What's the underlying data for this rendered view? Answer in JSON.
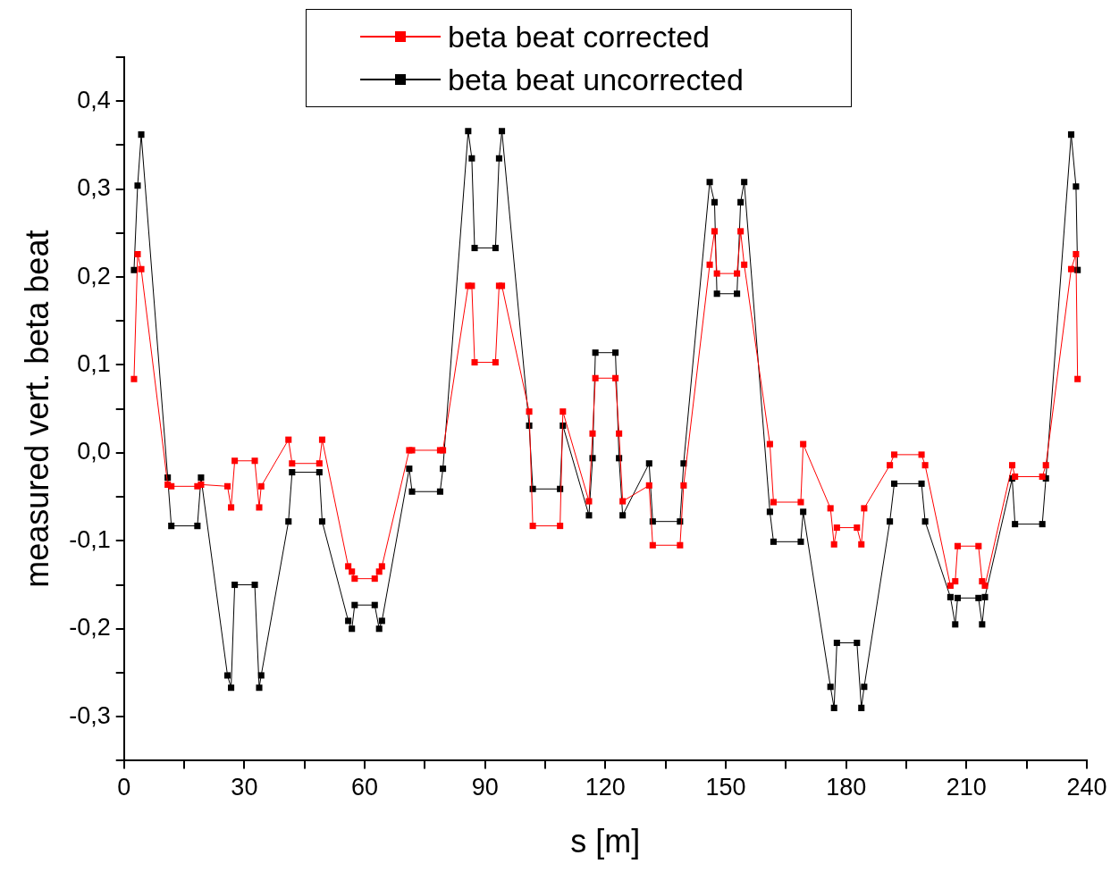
{
  "chart_data": {
    "type": "line",
    "xlabel": "s [m]",
    "ylabel": "measured vert. beta beat",
    "legend": "top",
    "marker": "square",
    "line_style": "solid",
    "grid": false,
    "x": [
      2.5,
      3.4,
      4.3,
      10.9,
      11.8,
      18.3,
      19.2,
      25.8,
      26.7,
      27.6,
      32.6,
      33.7,
      34.2,
      41.0,
      41.9,
      48.7,
      49.4,
      55.9,
      56.8,
      57.5,
      62.5,
      63.6,
      64.3,
      71.1,
      71.8,
      78.8,
      79.5,
      85.8,
      86.7,
      87.4,
      92.6,
      93.5,
      94.2,
      101.0,
      101.9,
      108.7,
      109.4,
      115.9,
      116.8,
      117.5,
      122.5,
      123.4,
      124.3,
      130.9,
      131.8,
      138.6,
      139.5,
      146.0,
      147.2,
      147.8,
      152.8,
      153.7,
      154.6,
      161.0,
      161.9,
      168.7,
      169.3,
      176.1,
      177.0,
      177.7,
      182.7,
      183.8,
      184.5,
      190.9,
      192.0,
      198.8,
      199.7,
      206.0,
      207.2,
      207.8,
      213.0,
      213.9,
      214.6,
      221.4,
      222.1,
      228.9,
      229.8,
      236.1,
      237.3,
      237.7
    ],
    "series": [
      {
        "name": "beta beat corrected",
        "color": "#ff0000",
        "values": [
          0.084,
          0.226,
          0.209,
          -0.036,
          -0.038,
          -0.038,
          -0.036,
          -0.038,
          -0.062,
          -0.009,
          -0.009,
          -0.062,
          -0.038,
          0.015,
          -0.012,
          -0.012,
          0.015,
          -0.129,
          -0.135,
          -0.143,
          -0.143,
          -0.135,
          -0.129,
          0.003,
          0.003,
          0.003,
          0.003,
          0.19,
          0.19,
          0.103,
          0.103,
          0.19,
          0.19,
          0.047,
          -0.083,
          -0.083,
          0.047,
          -0.055,
          0.022,
          0.085,
          0.085,
          0.022,
          -0.055,
          -0.037,
          -0.105,
          -0.105,
          -0.037,
          0.214,
          0.252,
          0.204,
          0.204,
          0.252,
          0.214,
          0.01,
          -0.056,
          -0.056,
          0.01,
          -0.063,
          -0.104,
          -0.085,
          -0.085,
          -0.104,
          -0.063,
          -0.014,
          -0.002,
          -0.002,
          -0.014,
          -0.151,
          -0.146,
          -0.106,
          -0.106,
          -0.146,
          -0.151,
          -0.014,
          -0.027,
          -0.027,
          -0.014,
          0.209,
          0.226,
          0.084
        ]
      },
      {
        "name": "beta beat uncorrected",
        "color": "#000000",
        "values": [
          0.208,
          0.304,
          0.362,
          -0.028,
          -0.083,
          -0.083,
          -0.028,
          -0.253,
          -0.267,
          -0.15,
          -0.15,
          -0.267,
          -0.253,
          -0.078,
          -0.022,
          -0.022,
          -0.078,
          -0.191,
          -0.2,
          -0.173,
          -0.173,
          -0.2,
          -0.191,
          -0.018,
          -0.044,
          -0.044,
          -0.018,
          0.366,
          0.335,
          0.233,
          0.233,
          0.335,
          0.366,
          0.031,
          -0.041,
          -0.041,
          0.031,
          -0.071,
          -0.006,
          0.114,
          0.114,
          -0.006,
          -0.071,
          -0.012,
          -0.078,
          -0.078,
          -0.012,
          0.308,
          0.285,
          0.181,
          0.181,
          0.285,
          0.308,
          -0.067,
          -0.101,
          -0.101,
          -0.067,
          -0.266,
          -0.29,
          -0.216,
          -0.216,
          -0.29,
          -0.266,
          -0.078,
          -0.035,
          -0.035,
          -0.078,
          -0.164,
          -0.195,
          -0.165,
          -0.165,
          -0.195,
          -0.164,
          -0.029,
          -0.081,
          -0.081,
          -0.029,
          0.362,
          0.303,
          0.208
        ]
      }
    ],
    "xlim": [
      0,
      240
    ],
    "xticks": [
      0,
      {
        "value": 15,
        "label": null
      },
      30,
      {
        "value": 45,
        "label": null
      },
      60,
      {
        "value": 75,
        "label": null
      },
      90,
      {
        "value": 105,
        "label": null
      },
      120,
      {
        "value": 135,
        "label": null
      },
      150,
      {
        "value": 165,
        "label": null
      },
      180,
      {
        "value": 195,
        "label": null
      },
      210,
      {
        "value": 225,
        "label": null
      },
      240
    ],
    "ylim": [
      -0.35,
      0.45
    ],
    "yticks": [
      {
        "value": -0.35,
        "label": null
      },
      {
        "value": -0.3,
        "label": "-0,3"
      },
      {
        "value": -0.25,
        "label": null
      },
      {
        "value": -0.2,
        "label": "-0,2"
      },
      {
        "value": -0.15,
        "label": null
      },
      {
        "value": -0.1,
        "label": "-0,1"
      },
      {
        "value": -0.05,
        "label": null
      },
      {
        "value": 0,
        "label": "0,0"
      },
      {
        "value": 0.05,
        "label": null
      },
      {
        "value": 0.1,
        "label": "0,1"
      },
      {
        "value": 0.15,
        "label": null
      },
      {
        "value": 0.2,
        "label": "0,2"
      },
      {
        "value": 0.25,
        "label": null
      },
      {
        "value": 0.3,
        "label": "0,3"
      },
      {
        "value": 0.35,
        "label": null
      },
      {
        "value": 0.4,
        "label": "0,4"
      },
      {
        "value": 0.45,
        "label": null
      }
    ]
  }
}
